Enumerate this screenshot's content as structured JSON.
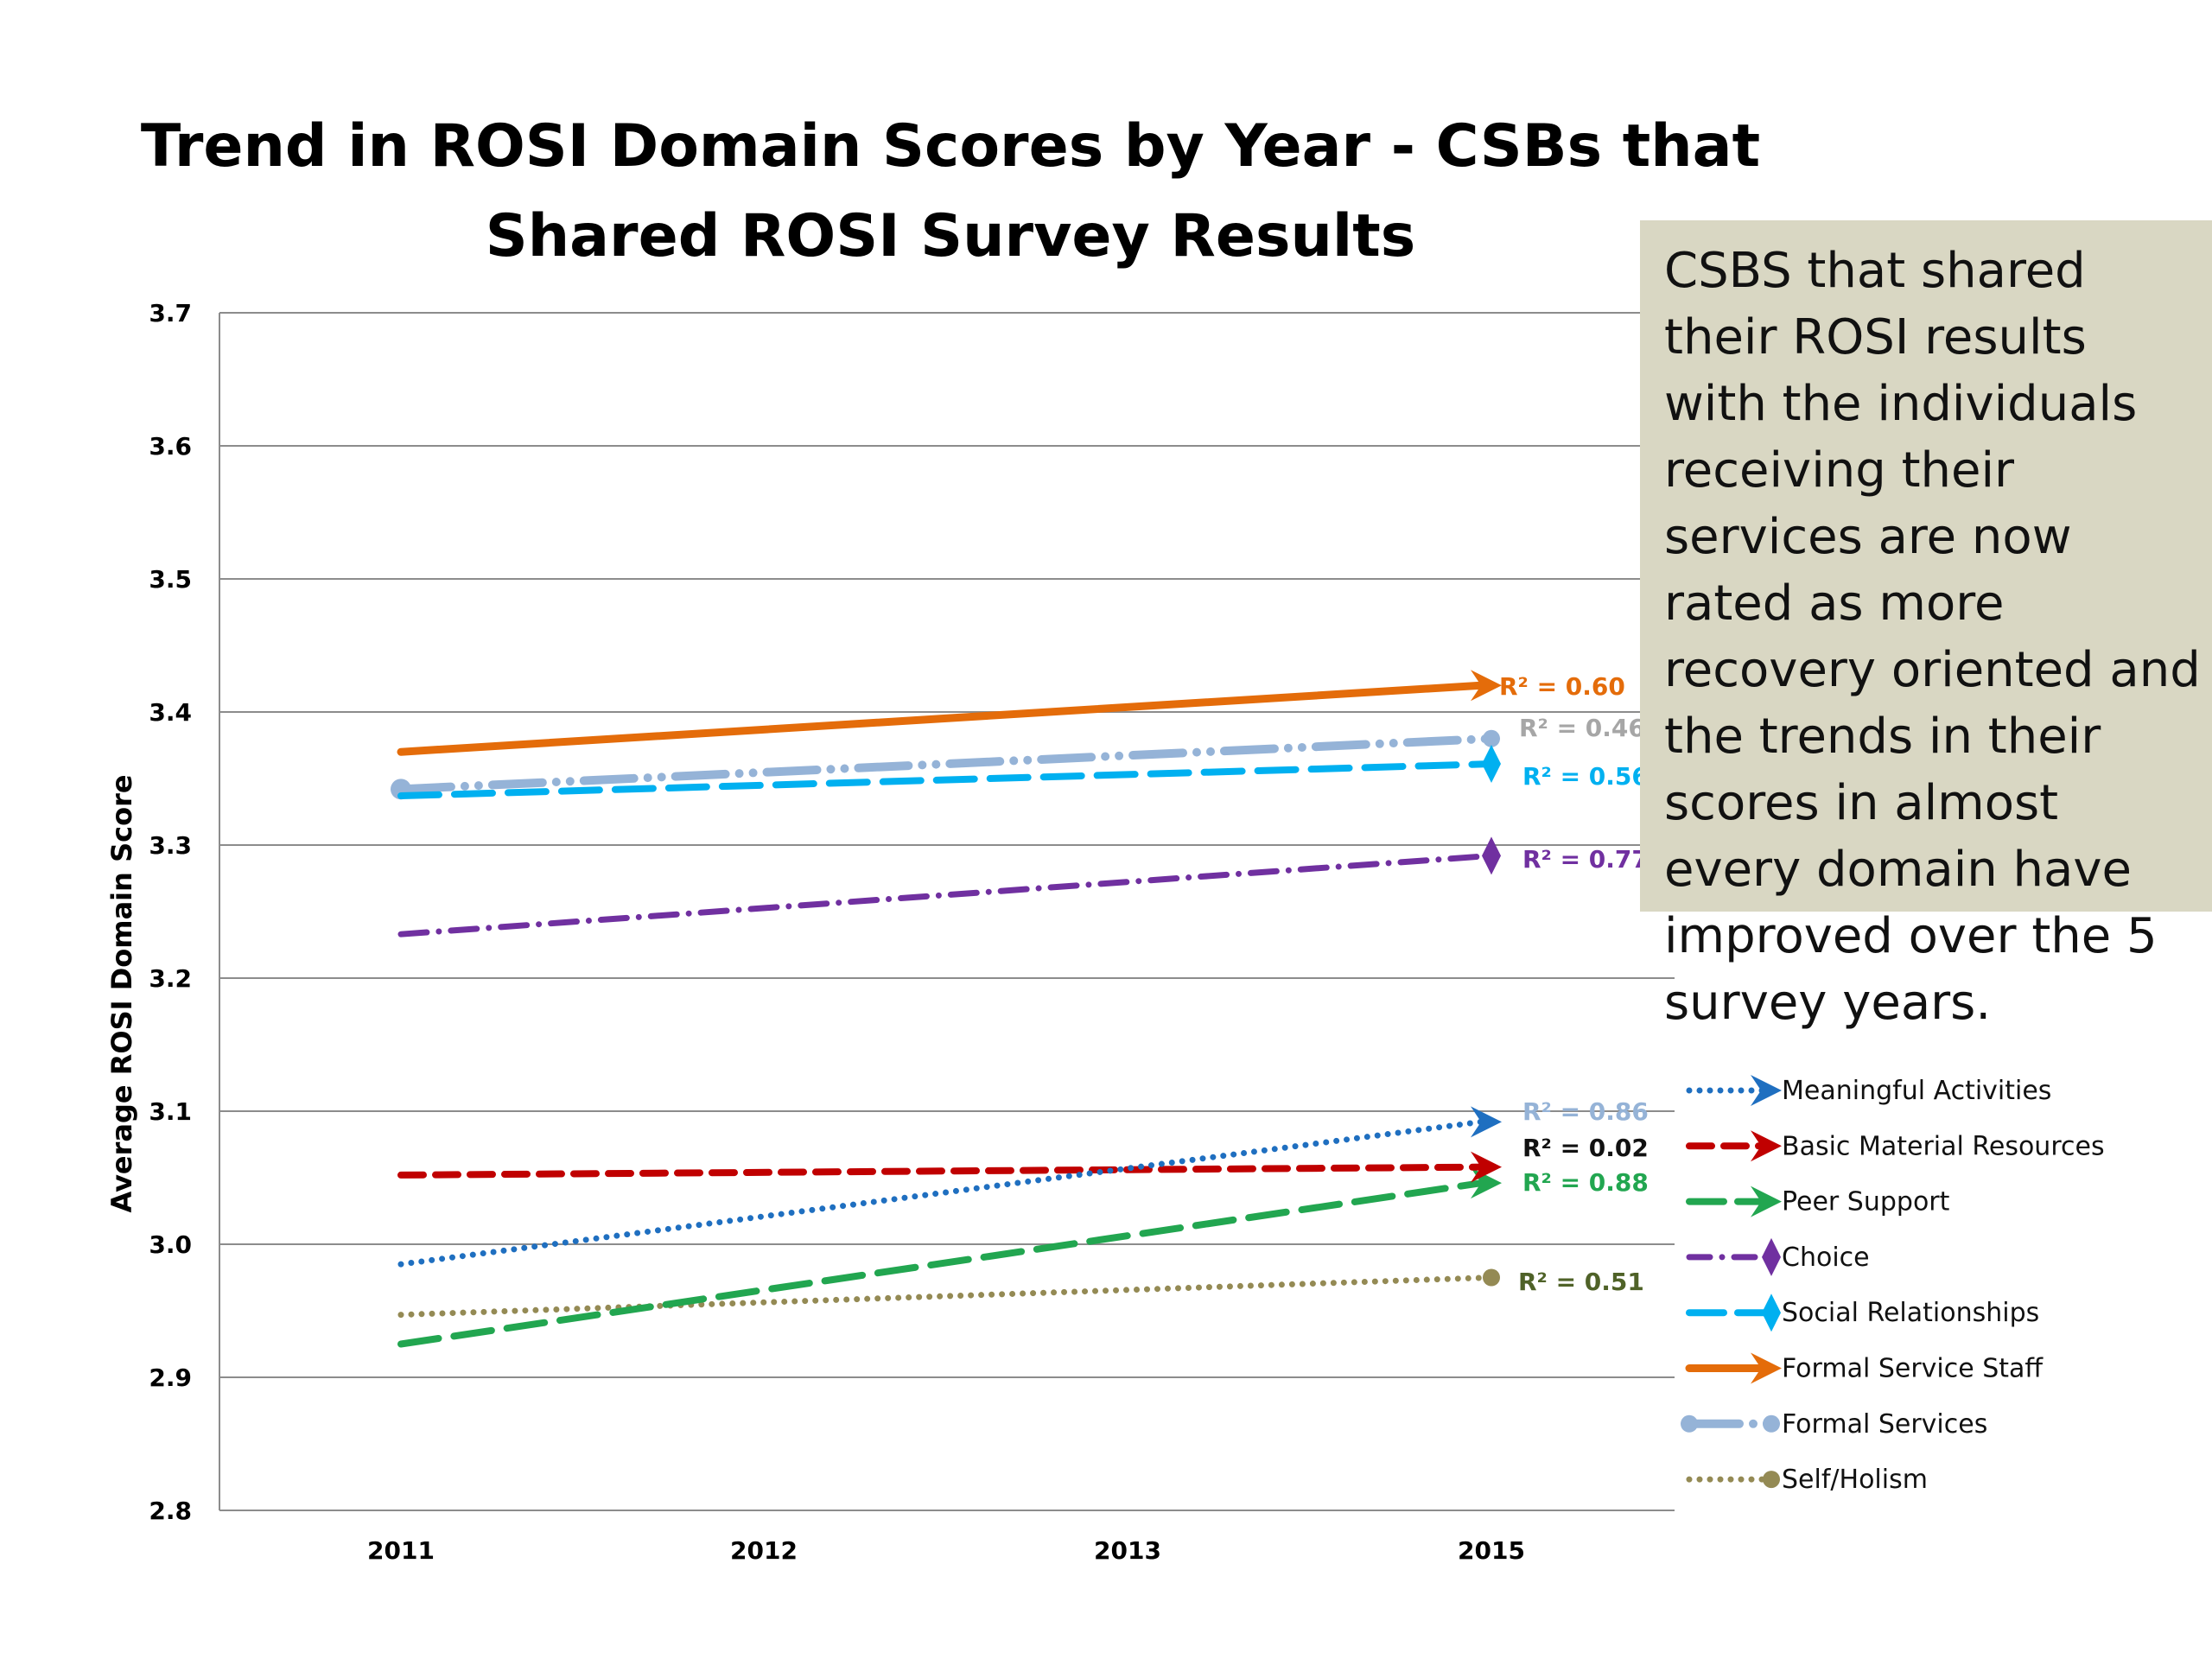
{
  "chart_data": {
    "type": "line",
    "title_lines": [
      "Trend in ROSI Domain Scores by Year - CSBs that",
      "Shared  ROSI Survey Results"
    ],
    "xlabel": "",
    "ylabel": "Average ROSI Domain Score",
    "categories": [
      "2011",
      "2012",
      "2013",
      "2015"
    ],
    "ylim": [
      2.8,
      3.7
    ],
    "yticks": [
      "2.8",
      "2.9",
      "3.0",
      "3.1",
      "3.2",
      "3.3",
      "3.4",
      "3.5",
      "3.6",
      "3.7"
    ],
    "grid": true,
    "legend_position": "right",
    "series": [
      {
        "name": "Meaningful Activities",
        "start": 2.985,
        "end": 3.092,
        "color": "#1f6fc0",
        "dash": "dot",
        "marker": "arrow",
        "r2": "R² = 0.86"
      },
      {
        "name": "Basic Material Resources",
        "start": 3.052,
        "end": 3.058,
        "color": "#c00000",
        "dash": "dash",
        "marker": "arrow",
        "r2": "R² = 0.02"
      },
      {
        "name": "Peer Support",
        "start": 2.925,
        "end": 3.046,
        "color": "#22a650",
        "dash": "longdash",
        "marker": "arrow",
        "r2": "R² = 0.88"
      },
      {
        "name": "Choice",
        "start": 3.233,
        "end": 3.292,
        "color": "#7030a0",
        "dash": "dashdot",
        "marker": "diamond",
        "r2": "R² = 0.77"
      },
      {
        "name": "Social Relationships",
        "start": 3.337,
        "end": 3.361,
        "color": "#00b0f0",
        "dash": "longdash",
        "marker": "diamond",
        "r2": "R² = 0.56"
      },
      {
        "name": "Formal Service Staff",
        "start": 3.37,
        "end": 3.42,
        "color": "#e46c0a",
        "dash": "solid",
        "marker": "arrow",
        "r2": "R² = 0.60"
      },
      {
        "name": "Formal  Services",
        "start": 3.342,
        "end": 3.38,
        "color": "#95b3d7",
        "dash": "longdashdot",
        "marker": "circle",
        "r2": "R² = 0.46"
      },
      {
        "name": "Self/Holism",
        "start": 2.947,
        "end": 2.975,
        "color": "#948a54",
        "dash": "dot",
        "marker": "circle",
        "r2": "R² = 0.51"
      }
    ]
  },
  "callout": {
    "text": "CSBS that shared their ROSI results with the individuals receiving their services are now rated as more recovery oriented and the trends in their scores in almost every domain have improved over the 5 survey years."
  }
}
